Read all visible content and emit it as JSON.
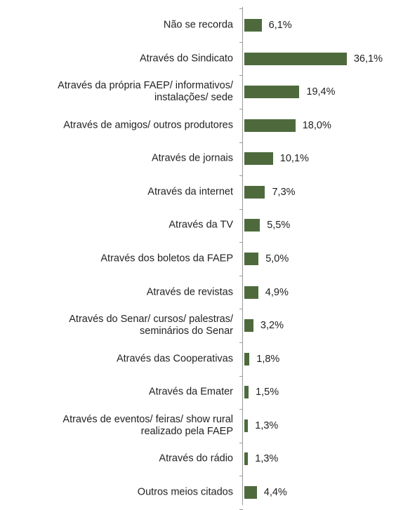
{
  "chart_data": {
    "type": "bar",
    "orientation": "horizontal",
    "color": "#4e6a3d",
    "categories": [
      "Não se recorda",
      "Através do Sindicato",
      "Através da própria FAEP/ informativos/\ninstalações/ sede",
      "Através de amigos/ outros produtores",
      "Através de jornais",
      "Através da internet",
      "Através da TV",
      "Através dos boletos da FAEP",
      "Através de revistas",
      "Através do Senar/ cursos/ palestras/\nseminários do Senar",
      "Através das Cooperativas",
      "Através da Emater",
      "Através de eventos/ feiras/ show rural\nrealizado pela FAEP",
      "Através do rádio",
      "Outros meios citados"
    ],
    "values": [
      6.1,
      36.1,
      19.4,
      18.0,
      10.1,
      7.3,
      5.5,
      5.0,
      4.9,
      3.2,
      1.8,
      1.5,
      1.3,
      1.3,
      4.4
    ],
    "value_labels": [
      "6,1%",
      "36,1%",
      "19,4%",
      "18,0%",
      "10,1%",
      "7,3%",
      "5,5%",
      "5,0%",
      "4,9%",
      "3,2%",
      "1,8%",
      "1,5%",
      "1,3%",
      "1,3%",
      "4,4%"
    ]
  }
}
